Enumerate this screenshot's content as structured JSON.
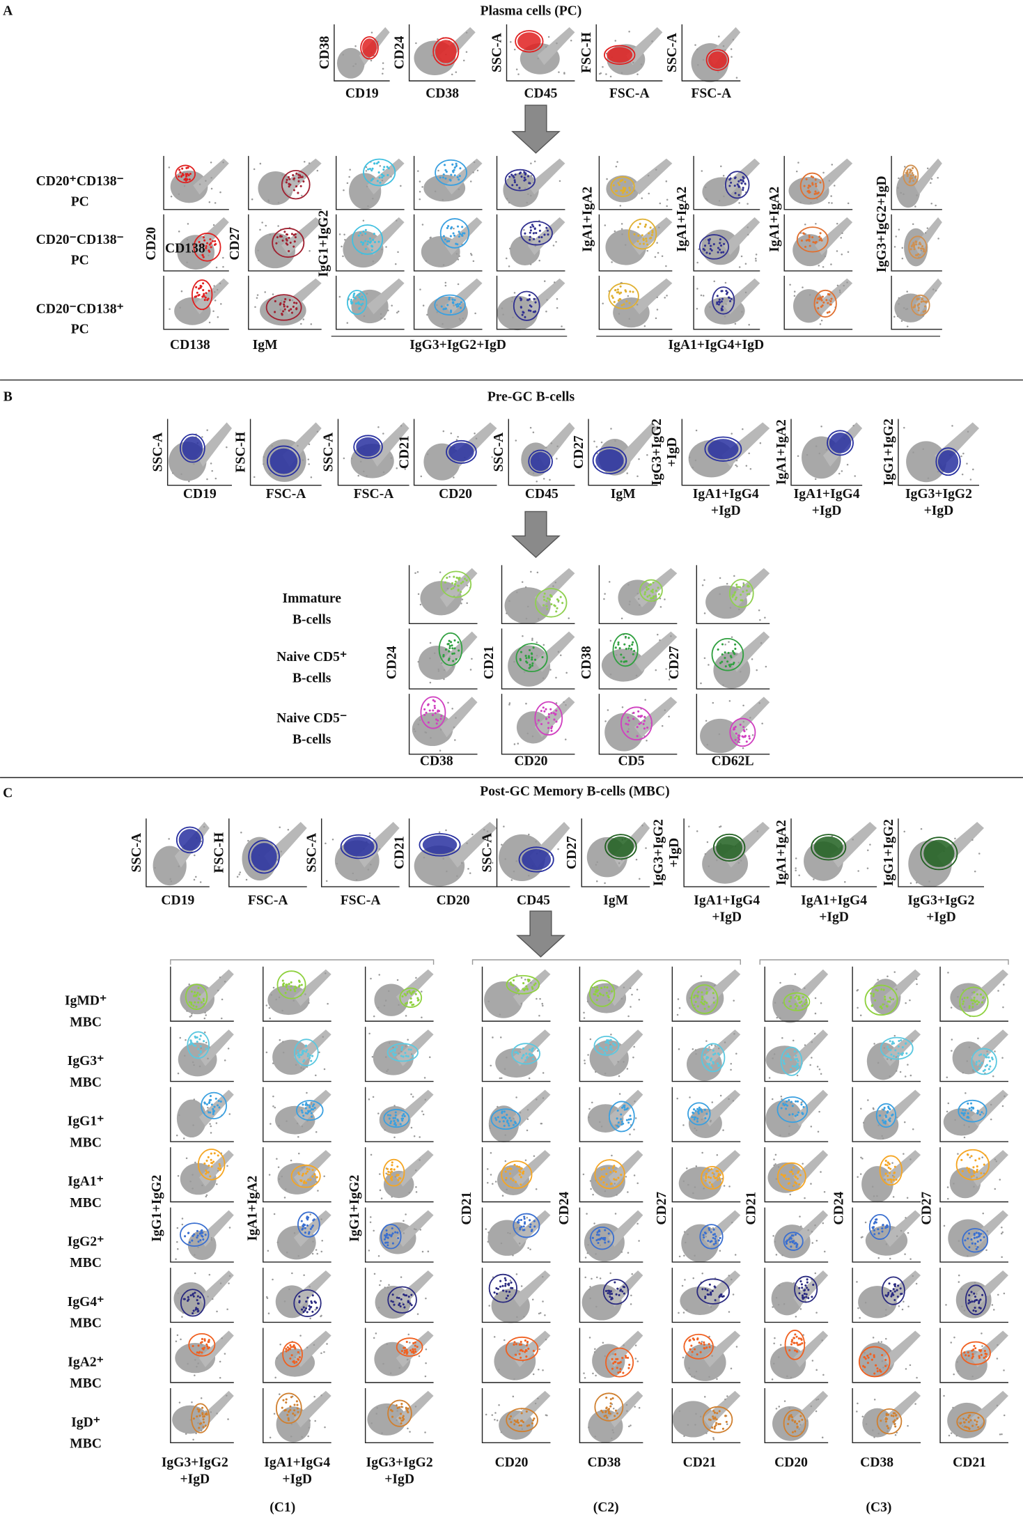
{
  "panel_a": {
    "letter": "A",
    "title": "Plasma cells (PC)",
    "gating": [
      {
        "y": [
          "CD38"
        ],
        "x": [
          "CD19"
        ]
      },
      {
        "y": [
          "CD24"
        ],
        "x": [
          "CD38"
        ]
      },
      {
        "y": [
          "SSC-A"
        ],
        "x": [
          "CD45"
        ]
      },
      {
        "y": [
          "FSC-H"
        ],
        "x": [
          "FSC-A"
        ]
      },
      {
        "y": [
          "SSC-A"
        ],
        "x": [
          "FSC-A"
        ]
      }
    ],
    "populations": [
      [
        "CD20⁺CD138⁻",
        "PC"
      ],
      [
        "CD20⁻CD138⁻",
        "PC"
      ],
      [
        "CD20⁻CD138⁺",
        "PC"
      ]
    ],
    "inner_label": "CD138",
    "grid_y_labels": [
      "CD20",
      "CD27",
      "IgG1+IgG2",
      "IgA1+IgA2",
      "IgA1+IgA2",
      "IgA1+IgA2",
      "IgG3+IgG2+IgD"
    ],
    "grid_x_labels": [
      "CD138",
      "IgM",
      "IgG3+IgG2+IgD",
      "IgA1+IgG4+IgD"
    ]
  },
  "panel_b": {
    "letter": "B",
    "title": "Pre-GC B-cells",
    "gating": [
      {
        "y": [
          "SSC-A"
        ],
        "x": [
          "CD19"
        ]
      },
      {
        "y": [
          "FSC-H"
        ],
        "x": [
          "FSC-A"
        ]
      },
      {
        "y": [
          "SSC-A"
        ],
        "x": [
          "FSC-A"
        ]
      },
      {
        "y": [
          "CD21"
        ],
        "x": [
          "CD20"
        ]
      },
      {
        "y": [
          "SSC-A"
        ],
        "x": [
          "CD45"
        ]
      },
      {
        "y": [
          "CD27"
        ],
        "x": [
          "IgM"
        ]
      },
      {
        "y": [
          "IgG3+IgG2",
          "+IgD"
        ],
        "x": [
          "IgA1+IgG4",
          "+IgD"
        ]
      },
      {
        "y": [
          "IgA1+IgA2"
        ],
        "x": [
          "IgA1+IgG4",
          "+IgD"
        ]
      },
      {
        "y": [
          "IgG1+IgG2"
        ],
        "x": [
          "IgG3+IgG2",
          "+IgD"
        ]
      }
    ],
    "populations": [
      [
        "Immature",
        "B-cells"
      ],
      [
        "Naive CD5⁺",
        "B-cells"
      ],
      [
        "Naive CD5⁻",
        "B-cells"
      ]
    ],
    "grid_y_labels": [
      "CD24",
      "CD21",
      "CD38",
      "CD27"
    ],
    "grid_x_labels": [
      "CD38",
      "CD20",
      "CD5",
      "CD62L"
    ]
  },
  "panel_c": {
    "letter": "C",
    "title": "Post-GC Memory B-cells (MBC)",
    "gating": [
      {
        "y": [
          "SSC-A"
        ],
        "x": [
          "CD19"
        ]
      },
      {
        "y": [
          "FSC-H"
        ],
        "x": [
          "FSC-A"
        ]
      },
      {
        "y": [
          "SSC-A"
        ],
        "x": [
          "FSC-A"
        ]
      },
      {
        "y": [
          "CD21"
        ],
        "x": [
          "CD20"
        ]
      },
      {
        "y": [
          "SSC-A"
        ],
        "x": [
          "CD45"
        ]
      },
      {
        "y": [
          "CD27"
        ],
        "x": [
          "IgM"
        ]
      },
      {
        "y": [
          "IgG3+IgG2",
          "+IgD"
        ],
        "x": [
          "IgA1+IgG4",
          "+IgD"
        ]
      },
      {
        "y": [
          "IgA1+IgA2"
        ],
        "x": [
          "IgA1+IgG4",
          "+IgD"
        ]
      },
      {
        "y": [
          "IgG1+IgG2"
        ],
        "x": [
          "IgG3+IgG2",
          "+IgD"
        ]
      }
    ],
    "populations": [
      [
        "IgMD⁺",
        "MBC"
      ],
      [
        "IgG3⁺",
        "MBC"
      ],
      [
        "IgG1⁺",
        "MBC"
      ],
      [
        "IgA1⁺",
        "MBC"
      ],
      [
        "IgG2⁺",
        "MBC"
      ],
      [
        "IgG4⁺",
        "MBC"
      ],
      [
        "IgA2⁺",
        "MBC"
      ],
      [
        "IgD⁺",
        "MBC"
      ]
    ],
    "grid_y_labels": [
      "IgG1+IgG2",
      "IgA1+IgA2",
      "IgG1+IgG2",
      "CD21",
      "CD24",
      "CD27",
      "CD21",
      "CD24",
      "CD27"
    ],
    "grid_x_labels": [
      [
        "IgG3+IgG2",
        "+IgD"
      ],
      [
        "IgA1+IgG4",
        "+IgD"
      ],
      [
        "IgG3+IgG2",
        "+IgD"
      ],
      [
        "CD20"
      ],
      [
        "CD38"
      ],
      [
        "CD21"
      ],
      [
        "CD20"
      ],
      [
        "CD38"
      ],
      [
        "CD21"
      ]
    ],
    "groups": [
      "(C1)",
      "(C2)",
      "(C3)"
    ]
  }
}
